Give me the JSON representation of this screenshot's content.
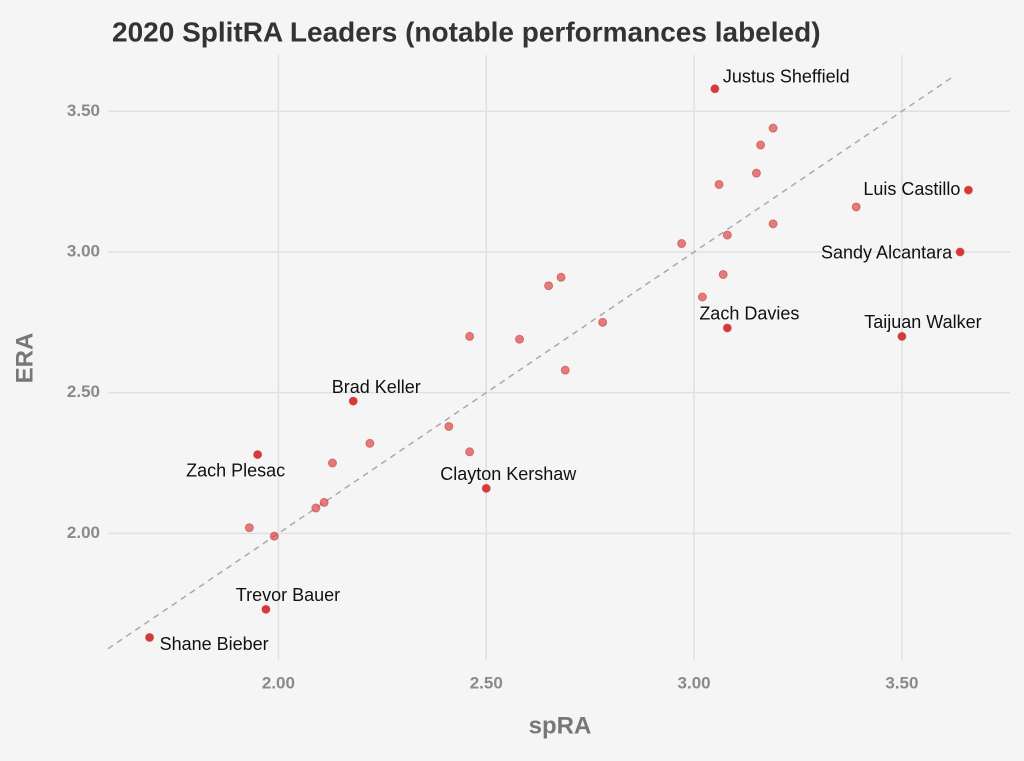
{
  "chart_data": {
    "type": "scatter",
    "title": "2020 SplitRA Leaders (notable performances labeled)",
    "x_label": "spRA",
    "y_label": "ERA",
    "x": [
      3.05,
      3.66,
      3.64,
      3.5,
      3.08,
      2.18,
      1.95,
      2.5,
      1.97,
      1.69,
      3.19,
      3.16,
      3.15,
      3.06,
      3.39,
      3.19,
      2.97,
      3.08,
      3.07,
      3.02,
      2.68,
      2.65,
      2.78,
      2.46,
      2.58,
      2.69,
      2.41,
      2.22,
      2.46,
      2.13,
      2.11,
      2.09,
      1.93,
      1.99
    ],
    "y": [
      3.58,
      3.22,
      3.0,
      2.7,
      2.73,
      2.47,
      2.28,
      2.16,
      1.73,
      1.63,
      3.44,
      3.38,
      3.28,
      3.24,
      3.16,
      3.1,
      3.03,
      3.06,
      2.92,
      2.84,
      2.91,
      2.88,
      2.75,
      2.7,
      2.69,
      2.58,
      2.38,
      2.32,
      2.29,
      2.25,
      2.11,
      2.09,
      2.02,
      1.99
    ],
    "point_labels": [
      "Justus Sheffield",
      "Luis Castillo",
      "Sandy Alcantara",
      "Taijuan Walker",
      "Zach Davies",
      "Brad Keller",
      "Zach Plesac",
      "Clayton Kershaw",
      "Trevor Bauer",
      "Shane Bieber",
      null,
      null,
      null,
      null,
      null,
      null,
      null,
      null,
      null,
      null,
      null,
      null,
      null,
      null,
      null,
      null,
      null,
      null,
      null,
      null,
      null,
      null,
      null,
      null
    ],
    "color": "#d43a3a",
    "xlim": [
      1.59,
      3.76
    ],
    "ylim": [
      1.55,
      3.7
    ],
    "xticks": [
      {
        "value": 2,
        "label": "2.00"
      },
      {
        "value": 2.5,
        "label": "2.50"
      },
      {
        "value": 3,
        "label": "3.00"
      },
      {
        "value": 3.5,
        "label": "3.50"
      }
    ],
    "yticks": [
      {
        "value": 2,
        "label": "2.00"
      },
      {
        "value": 2.5,
        "label": "2.50"
      },
      {
        "value": 3,
        "label": "3.00"
      },
      {
        "value": 3.5,
        "label": "3.50"
      }
    ],
    "grid": true,
    "identity_line": true
  }
}
